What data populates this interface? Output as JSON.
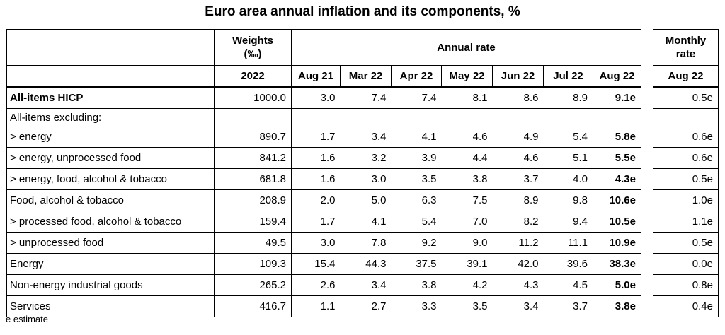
{
  "title": "Euro area annual inflation and its components, %",
  "header": {
    "weights_line1": "Weights",
    "weights_line2": "(‰)",
    "annual_rate": "Annual rate",
    "monthly_line1": "Monthly",
    "monthly_line2": "rate",
    "year": "2022",
    "columns": [
      "Aug 21",
      "Mar 22",
      "Apr 22",
      "May 22",
      "Jun 22",
      "Jul 22",
      "Aug 22"
    ],
    "monthly_column": "Aug 22"
  },
  "chart_data": {
    "type": "table",
    "title": "Euro area annual inflation and its components, %",
    "columns": [
      "Weights (‰) 2022",
      "Aug 21",
      "Mar 22",
      "Apr 22",
      "May 22",
      "Jun 22",
      "Jul 22",
      "Aug 22",
      "Monthly rate Aug 22"
    ],
    "rows": [
      {
        "label": "All-items HICP",
        "weight": "1000.0",
        "values": [
          "3.0",
          "7.4",
          "7.4",
          "8.1",
          "8.6",
          "8.9",
          "9.1e"
        ],
        "monthly": "0.5e"
      },
      {
        "label": "All-items excluding:",
        "weight": "",
        "values": [
          "",
          "",
          "",
          "",
          "",
          "",
          ""
        ],
        "monthly": ""
      },
      {
        "label": "> energy",
        "weight": "890.7",
        "values": [
          "1.7",
          "3.4",
          "4.1",
          "4.6",
          "4.9",
          "5.4",
          "5.8e"
        ],
        "monthly": "0.6e"
      },
      {
        "label": "> energy, unprocessed food",
        "weight": "841.2",
        "values": [
          "1.6",
          "3.2",
          "3.9",
          "4.4",
          "4.6",
          "5.1",
          "5.5e"
        ],
        "monthly": "0.6e"
      },
      {
        "label": "> energy, food, alcohol & tobacco",
        "weight": "681.8",
        "values": [
          "1.6",
          "3.0",
          "3.5",
          "3.8",
          "3.7",
          "4.0",
          "4.3e"
        ],
        "monthly": "0.5e"
      },
      {
        "label": "Food, alcohol & tobacco",
        "weight": "208.9",
        "values": [
          "2.0",
          "5.0",
          "6.3",
          "7.5",
          "8.9",
          "9.8",
          "10.6e"
        ],
        "monthly": "1.0e"
      },
      {
        "label": "> processed food, alcohol & tobacco",
        "weight": "159.4",
        "values": [
          "1.7",
          "4.1",
          "5.4",
          "7.0",
          "8.2",
          "9.4",
          "10.5e"
        ],
        "monthly": "1.1e"
      },
      {
        "label": "> unprocessed food",
        "weight": "49.5",
        "values": [
          "3.0",
          "7.8",
          "9.2",
          "9.0",
          "11.2",
          "11.1",
          "10.9e"
        ],
        "monthly": "0.5e"
      },
      {
        "label": "Energy",
        "weight": "109.3",
        "values": [
          "15.4",
          "44.3",
          "37.5",
          "39.1",
          "42.0",
          "39.6",
          "38.3e"
        ],
        "monthly": "0.0e"
      },
      {
        "label": "Non-energy industrial goods",
        "weight": "265.2",
        "values": [
          "2.6",
          "3.4",
          "3.8",
          "4.2",
          "4.3",
          "4.5",
          "5.0e"
        ],
        "monthly": "0.8e"
      },
      {
        "label": "Services",
        "weight": "416.7",
        "values": [
          "1.1",
          "2.7",
          "3.3",
          "3.5",
          "3.4",
          "3.7",
          "3.8e"
        ],
        "monthly": "0.4e"
      }
    ]
  },
  "footer": "e estimate"
}
